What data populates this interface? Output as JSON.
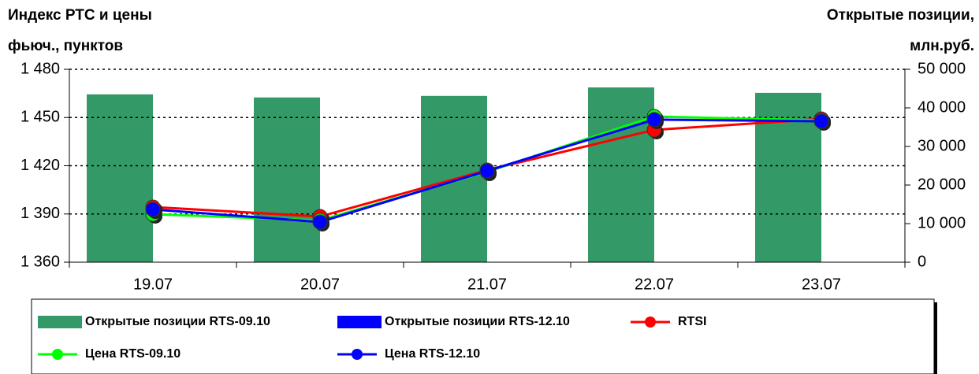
{
  "chart_data": {
    "type": "combo",
    "ylabel": [
      "Индекс РТС и цены",
      "фьюч., пунктов"
    ],
    "y2label": [
      "Открытые позиции,",
      "млн.руб."
    ],
    "categories": [
      "19.07",
      "20.07",
      "21.07",
      "22.07",
      "23.07"
    ],
    "ylim": [
      1360,
      1480
    ],
    "yticks": [
      {
        "value": 1360,
        "label": "1 360"
      },
      {
        "value": 1390,
        "label": "1 390"
      },
      {
        "value": 1420,
        "label": "1 420"
      },
      {
        "value": 1450,
        "label": "1 450"
      },
      {
        "value": 1480,
        "label": "1 480"
      }
    ],
    "y2lim": [
      0,
      50000
    ],
    "y2ticks": [
      0,
      {
        "value": 10000,
        "label": "10 000"
      },
      {
        "value": 20000,
        "label": "20 000"
      },
      {
        "value": 30000,
        "label": "30 000"
      },
      {
        "value": 40000,
        "label": "40 000"
      },
      {
        "value": 50000,
        "label": "50 000"
      }
    ],
    "grid": true,
    "series": [
      {
        "name": "Открытые позиции RTS-09.10",
        "color": "#339966",
        "type": "bar",
        "axis": "y2",
        "values": [
          43500,
          42700,
          43100,
          45300,
          43900
        ]
      },
      {
        "name": "Открытые позиции RTS-12.10",
        "color": "#0000ff",
        "type": "bar",
        "axis": "y2",
        "values": [
          0,
          0,
          0,
          0,
          0
        ]
      },
      {
        "name": "RTSI",
        "color": "#ff0000",
        "type": "line",
        "values": [
          1394.3,
          1388.4,
          1417.3,
          1442.3,
          1449.1
        ]
      },
      {
        "name": "Цена RTS-09.10",
        "color": "#00ff00",
        "type": "line",
        "values": [
          1389.9,
          1386.0,
          1416.3,
          1450.6,
          1448.2
        ]
      },
      {
        "name": "Цена RTS-12.10",
        "color": "#0000ff",
        "type": "line",
        "values": [
          1392.8,
          1385.0,
          1416.8,
          1448.7,
          1447.7
        ]
      }
    ]
  }
}
